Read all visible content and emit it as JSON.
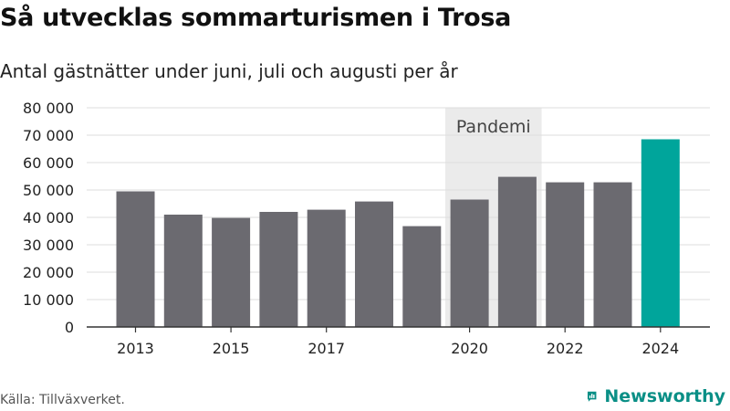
{
  "header": {
    "title": "Så utvecklas sommarturismen i Trosa",
    "subtitle": "Antal gästnätter under juni, juli och augusti per år"
  },
  "footer": {
    "source": "Källa: Tillväxverket.",
    "brand": "Newsworthy",
    "brand_icon": "newsworthy-logo-icon"
  },
  "colors": {
    "bar": "#6b6a70",
    "highlight": "#00a59b",
    "band": "#ebebeb",
    "grid": "#dddddd",
    "brand": "#0a8f86"
  },
  "chart_data": {
    "type": "bar",
    "x": [
      2013,
      2014,
      2015,
      2016,
      2017,
      2018,
      2019,
      2020,
      2021,
      2022,
      2023,
      2024
    ],
    "values": [
      49500,
      41000,
      39800,
      42000,
      42800,
      45800,
      36800,
      46500,
      54800,
      52800,
      52800,
      68500
    ],
    "highlight_index": 11,
    "xtick_labels": [
      "2013",
      "2015",
      "2017",
      "2020",
      "2022",
      "2024"
    ],
    "ytick_labels": [
      "0",
      "10 000",
      "20 000",
      "30 000",
      "40 000",
      "50 000",
      "60 000",
      "70 000",
      "80 000"
    ],
    "ylim": [
      0,
      80000
    ],
    "yticks": [
      0,
      10000,
      20000,
      30000,
      40000,
      50000,
      60000,
      70000,
      80000
    ],
    "grid": true,
    "annotation": {
      "label": "Pandemi",
      "x_start": 2020,
      "x_end": 2021
    }
  }
}
